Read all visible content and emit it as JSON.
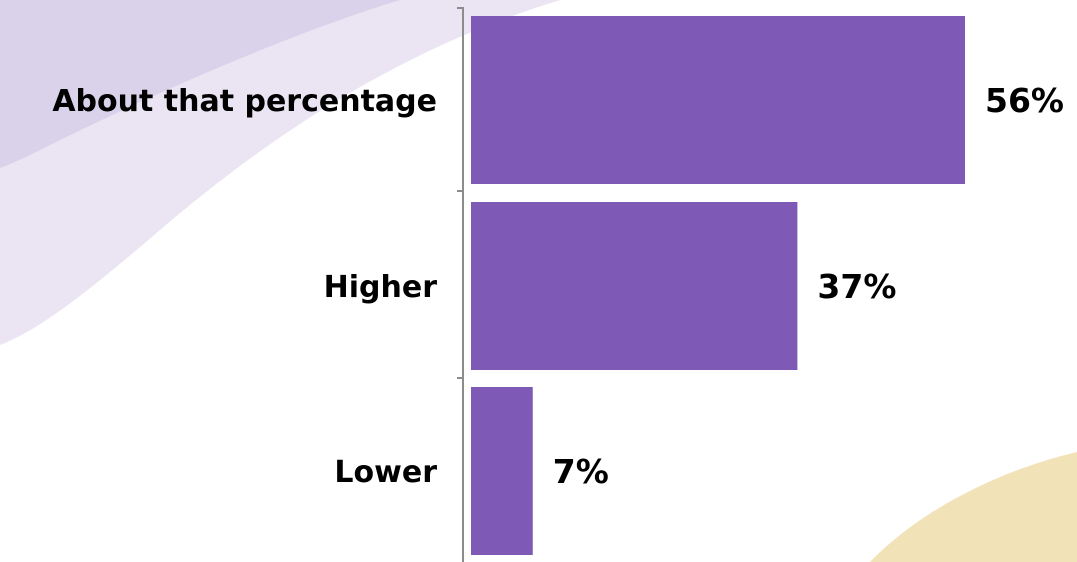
{
  "colors": {
    "bar": "#7E59B6",
    "axis": "#8C8C8C",
    "bg_swoosh_light": "#EAE4F3",
    "bg_swoosh_mid": "#DAD1EA",
    "bg_swoosh_gold": "#F1E2B8"
  },
  "chart_data": {
    "type": "bar",
    "orientation": "horizontal",
    "categories": [
      "About that percentage",
      "Higher",
      "Lower"
    ],
    "values": [
      56,
      37,
      7
    ],
    "value_labels": [
      "56%",
      "37%",
      "7%"
    ],
    "unit": "%",
    "xlim": [
      0,
      60
    ],
    "grid": false,
    "legend": "none"
  }
}
